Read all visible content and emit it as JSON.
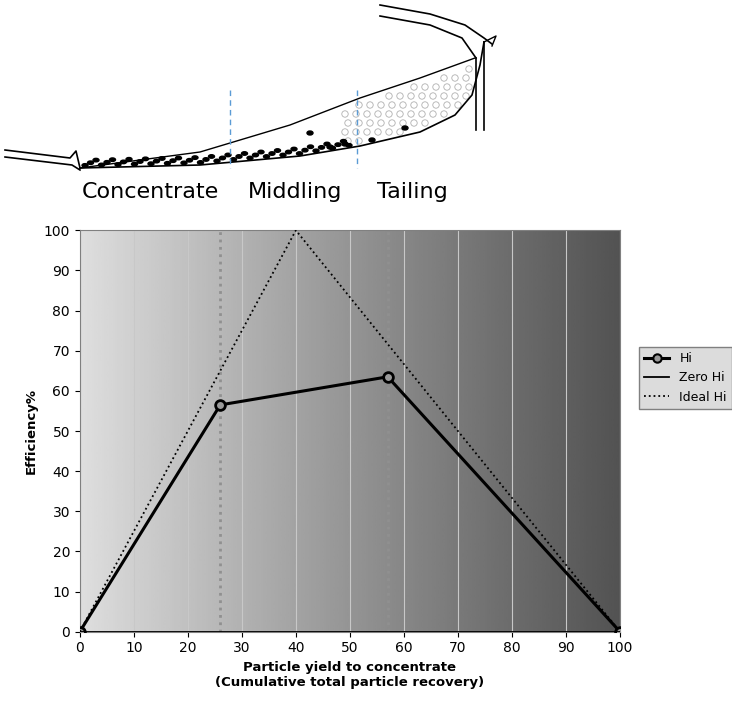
{
  "chart_data": {
    "type": "line",
    "x_label": "Particle yield to concentrate\n(Cumulative total particle recovery)",
    "y_label": "Efficiency%",
    "series": [
      {
        "name": "Hi",
        "color": "#000000",
        "marker": "o",
        "line_style": "solid",
        "x": [
          0,
          26,
          57,
          100
        ],
        "values": [
          0,
          56.5,
          63.5,
          0
        ]
      },
      {
        "name": "Zero Hi",
        "color": "#000000",
        "marker": "none",
        "line_style": "solid",
        "x": [
          0,
          100
        ],
        "values": [
          0,
          0
        ]
      },
      {
        "name": "Ideal Hi",
        "color": "#000000",
        "marker": "none",
        "line_style": "dotted",
        "x": [
          0,
          40,
          100
        ],
        "values": [
          0,
          100,
          0
        ]
      }
    ],
    "cut_points": [
      26,
      57
    ],
    "xlim": [
      0,
      100
    ],
    "ylim": [
      0,
      100
    ],
    "xticks": [
      0,
      10,
      20,
      30,
      40,
      50,
      60,
      70,
      80,
      90,
      100
    ],
    "yticks": [
      0,
      10,
      20,
      30,
      40,
      50,
      60,
      70,
      80,
      90,
      100
    ],
    "grid": "x",
    "legend": "center left"
  },
  "diagram": {
    "labels": [
      "Concentrate",
      "Middling",
      "Tailing"
    ]
  }
}
